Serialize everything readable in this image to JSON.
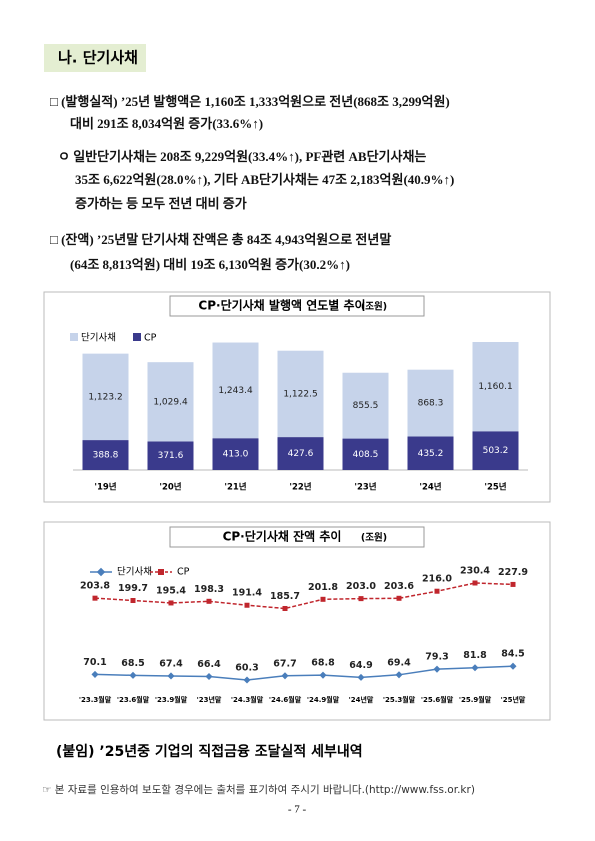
{
  "header": {
    "title": "나. 단기사채"
  },
  "paragraphs": [
    {
      "lines": [
        "□ (발행실적) ’25년 발행액은 1,160조 1,333억원으로 전년(868조 3,299억원)",
        "대비 291조 8,034억원 증가(33.6%↑)"
      ]
    },
    {
      "lines": [
        "ㅇ 일반단기사채는 208조 9,229억원(33.4%↑), PF관련 AB단기사채는",
        "35조 6,622억원(28.0%↑), 기타 AB단기사채는 47조 2,183억원(40.9%↑)",
        "증가하는 등 모두 전년 대비 증가"
      ]
    },
    {
      "lines": [
        "□ (잔액) ’25년말 단기사채 잔액은 총 84조 4,943억원으로 전년말",
        "(64조 8,813억원) 대비 19조 6,130억원 증가(30.2%↑)"
      ]
    }
  ],
  "chart_data": [
    {
      "type": "bar",
      "stacked": true,
      "title": "CP·단기사채 발행액 연도별 추이",
      "subtitle": "(조원)",
      "categories": [
        "'19년",
        "'20년",
        "'21년",
        "'22년",
        "'23년",
        "'24년",
        "'25년"
      ],
      "series": [
        {
          "name": "CP",
          "color": "#3a3a8c",
          "values": [
            388.8,
            371.6,
            413.0,
            427.6,
            408.5,
            435.2,
            503.2
          ],
          "value_labels": [
            "388.8",
            "371.6",
            "413.0",
            "427.6",
            "408.5",
            "435.2",
            "503.2"
          ]
        },
        {
          "name": "단기사채",
          "color": "#c6d3ea",
          "values": [
            1123.2,
            1029.4,
            1243.4,
            1122.5,
            855.5,
            868.3,
            1160.1
          ],
          "value_labels": [
            "1,123.2",
            "1,029.4",
            "1,243.4",
            "1,122.5",
            "855.5",
            "868.3",
            "1,160.1"
          ]
        }
      ]
    },
    {
      "type": "line",
      "title": "CP·단기사채 잔액 추이",
      "subtitle": "(조원)",
      "categories": [
        "'23.3월말",
        "'23.6월말",
        "'23.9월말",
        "'23년말",
        "'24.3월말",
        "'24.6월말",
        "'24.9월말",
        "'24년말",
        "'25.3월말",
        "'25.6월말",
        "'25.9월말",
        "'25년말"
      ],
      "series": [
        {
          "name": "단기사채",
          "color": "#4a7ebb",
          "marker": "diamond",
          "values": [
            70.1,
            68.5,
            67.4,
            66.4,
            60.3,
            67.7,
            68.8,
            64.9,
            69.4,
            79.3,
            81.8,
            84.5
          ]
        },
        {
          "name": "CP",
          "color": "#c0262d",
          "marker": "square",
          "dashed": true,
          "values": [
            203.8,
            199.7,
            195.4,
            198.3,
            191.4,
            185.7,
            201.8,
            203.0,
            203.6,
            216.0,
            230.4,
            227.9
          ],
          "value_labels": [
            "203.8",
            "199.7",
            "195.4",
            "198.3",
            "191.4",
            "185.7",
            "201.8",
            "203.0",
            "203.6",
            "216.0",
            "230.4",
            "227.9"
          ]
        }
      ]
    }
  ],
  "footer": {
    "attachment": "(붙임) ’25년중 기업의 직접금융 조달실적 세부내역",
    "note": "☞ 본 자료를 인용하여 보도할 경우에는 출처를 표기하여 주시기 바랍니다.(http://www.fss.or.kr)",
    "page": "- 7 -"
  }
}
